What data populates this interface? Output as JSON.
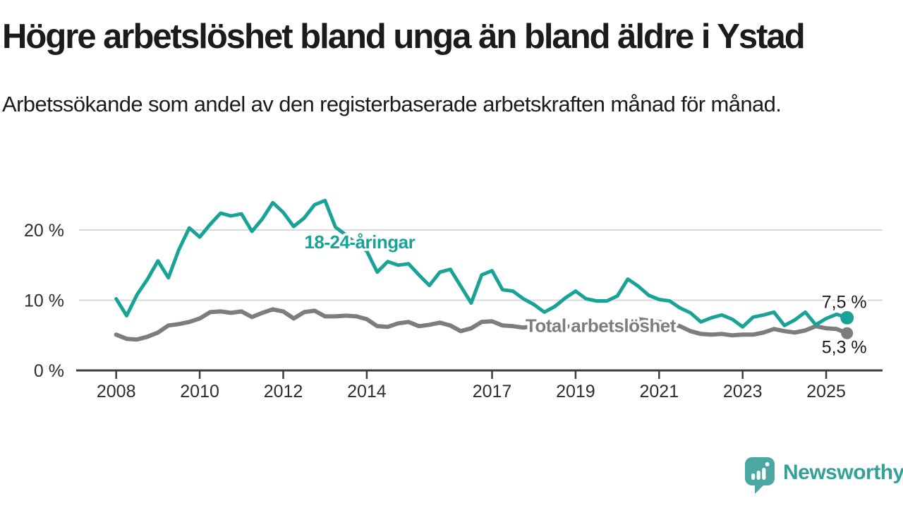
{
  "chart_data": {
    "type": "line",
    "title": "Högre arbetslöshet bland unga än bland äldre i Ystad",
    "subtitle": "Arbetssökande som andel av den registerbaserade arbetskraften månad för månad.",
    "unit": "%",
    "grid": "horizontal",
    "legend_position": "inline-labels",
    "xlim": [
      2007.05,
      2026.35
    ],
    "ylim": [
      0,
      25.8
    ],
    "x_tick_values": [
      2008,
      2010,
      2012,
      2014,
      2017,
      2019,
      2021,
      2023,
      2025
    ],
    "x_tick_labels": [
      "2008",
      "2010",
      "2012",
      "2014",
      "2017",
      "2019",
      "2021",
      "2023",
      "2025"
    ],
    "y_tick_values": [
      0,
      10,
      20
    ],
    "y_tick_labels": [
      "0 %",
      "10 %",
      "20 %"
    ],
    "x": [
      2008,
      2008.25,
      2008.5,
      2008.75,
      2009,
      2009.25,
      2009.5,
      2009.75,
      2010,
      2010.25,
      2010.5,
      2010.75,
      2011,
      2011.25,
      2011.5,
      2011.75,
      2012,
      2012.25,
      2012.5,
      2012.75,
      2013,
      2013.25,
      2013.5,
      2013.75,
      2014,
      2014.25,
      2014.5,
      2014.75,
      2015,
      2015.25,
      2015.5,
      2015.75,
      2016,
      2016.25,
      2016.5,
      2016.75,
      2017,
      2017.25,
      2017.5,
      2017.75,
      2018,
      2018.25,
      2018.5,
      2018.75,
      2019,
      2019.25,
      2019.5,
      2019.75,
      2020,
      2020.25,
      2020.5,
      2020.75,
      2021,
      2021.25,
      2021.5,
      2021.75,
      2022,
      2022.25,
      2022.5,
      2022.75,
      2023,
      2023.25,
      2023.5,
      2023.75,
      2024,
      2024.25,
      2024.5,
      2024.75,
      2025,
      2025.25,
      2025.5
    ],
    "series": [
      {
        "id": "youth",
        "name": "18-24-åringar",
        "color": "#18a396",
        "end_value": 7.5,
        "end_label": "7,5 %",
        "label_anchor": {
          "x": 2013.83,
          "y": 18.3
        },
        "values": [
          10.2,
          7.8,
          10.8,
          13.0,
          15.6,
          13.2,
          17.2,
          20.3,
          19.0,
          20.8,
          22.4,
          22.0,
          22.3,
          19.8,
          21.6,
          23.9,
          22.5,
          20.5,
          21.7,
          23.6,
          24.2,
          20.4,
          19.3,
          18.0,
          17.0,
          14.0,
          15.5,
          15.0,
          15.2,
          13.6,
          12.1,
          14.0,
          14.4,
          12.0,
          9.6,
          13.6,
          14.2,
          11.5,
          11.3,
          10.2,
          9.4,
          8.3,
          9.1,
          10.3,
          11.3,
          10.2,
          9.9,
          9.9,
          10.6,
          13.0,
          12.0,
          10.7,
          10.1,
          9.9,
          8.9,
          8.2,
          6.9,
          7.5,
          7.9,
          7.3,
          6.2,
          7.6,
          7.9,
          8.3,
          6.4,
          7.2,
          8.3,
          6.5,
          7.4,
          8.0,
          7.5
        ]
      },
      {
        "id": "total",
        "name": "Total arbetslöshet",
        "color": "#7d7d7d",
        "end_value": 5.3,
        "end_label": "5,3 %",
        "label_anchor": {
          "x": 2019.6,
          "y": 6.4
        },
        "values": [
          5.1,
          4.5,
          4.4,
          4.8,
          5.4,
          6.4,
          6.6,
          6.9,
          7.4,
          8.3,
          8.4,
          8.2,
          8.4,
          7.6,
          8.2,
          8.7,
          8.4,
          7.4,
          8.3,
          8.5,
          7.7,
          7.7,
          7.8,
          7.7,
          7.3,
          6.3,
          6.2,
          6.7,
          6.9,
          6.3,
          6.5,
          6.8,
          6.4,
          5.6,
          6.0,
          6.9,
          7.0,
          6.4,
          6.3,
          6.1,
          6.3,
          6.6,
          6.3,
          6.2,
          6.4,
          6.2,
          6.0,
          6.2,
          6.3,
          7.0,
          7.3,
          7.1,
          6.9,
          6.7,
          6.3,
          5.6,
          5.2,
          5.1,
          5.2,
          5.0,
          5.1,
          5.1,
          5.4,
          5.9,
          5.6,
          5.4,
          5.7,
          6.3,
          6.0,
          5.9,
          5.3
        ]
      }
    ]
  },
  "branding": {
    "logo_text": "Newsworthy",
    "logo_icon": "speech-bubble-bar-chart-icon",
    "logo_text_color": "#35a099",
    "logo_icon_color": "#4ba8a0"
  },
  "colors": {
    "background": "#ffffff",
    "title_text": "#1b1b1b",
    "axis_line": "#3d3d3d",
    "axis_text": "#2d2d2d",
    "gridline": "#d9d9d9",
    "value_label_text": "#1b1b1b"
  }
}
